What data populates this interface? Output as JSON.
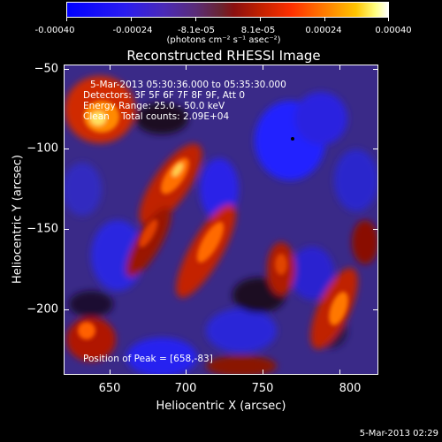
{
  "colorbar": {
    "ticks": [
      "-0.00040",
      "-0.00024",
      "-8.1e-05",
      "8.1e-05",
      "0.00024",
      "0.00040"
    ],
    "units": "(photons cm⁻² s⁻¹ asec⁻²)"
  },
  "title": "Reconstructed RHESSI Image",
  "info": {
    "time": "5-Mar-2013 05:30:36.000 to 05:35:30.000",
    "detectors": "Detectors: 3F 5F 6F 7F 8F 9F, Att 0",
    "energy": "Energy Range: 25.0 - 50.0 keV",
    "clean": "Clean    Total counts: 2.09E+04",
    "peak": "Position of Peak = [658,-83]"
  },
  "axes": {
    "xlabel": "Heliocentric X (arcsec)",
    "ylabel": "Heliocentric Y (arcsec)",
    "xticks": [
      "650",
      "700",
      "750",
      "800"
    ],
    "yticks": [
      "−50",
      "−100",
      "−150",
      "−200"
    ],
    "xlim": [
      622,
      815
    ],
    "ylim": [
      -243,
      -47
    ]
  },
  "timestamp": "5-Mar-2013 02:29",
  "colors": {
    "background": "#000000",
    "blue": "#1e22ff",
    "purple": "#4a2aa0",
    "red": "#d41e00",
    "orange": "#ff8a00",
    "yellow": "#ffee60"
  }
}
